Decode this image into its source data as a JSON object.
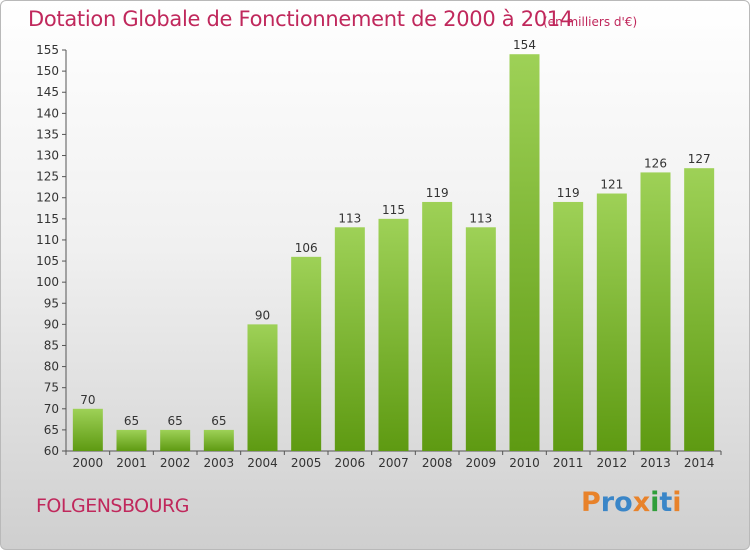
{
  "header": {
    "title": "Dotation Globale de Fonctionnement de 2000 à 2014",
    "subtitle": "(en milliers d'€)"
  },
  "footer": {
    "commune": "FOLGENSBOURG",
    "logo": "Proxiti"
  },
  "colors": {
    "accent": "#c0285c",
    "bar_top": "#9ed157",
    "bar_bottom": "#5e9a12",
    "logo_letters": [
      "#e8822a",
      "#3a86c8",
      "#3a86c8",
      "#e8822a",
      "#2f9e3a",
      "#3a86c8",
      "#e8822a"
    ]
  },
  "chart_data": {
    "type": "bar",
    "title": "Dotation Globale de Fonctionnement de 2000 à 2014",
    "subtitle": "(en milliers d'€)",
    "xlabel": "",
    "ylabel": "",
    "categories": [
      "2000",
      "2001",
      "2002",
      "2003",
      "2004",
      "2005",
      "2006",
      "2007",
      "2008",
      "2009",
      "2010",
      "2011",
      "2012",
      "2013",
      "2014"
    ],
    "values": [
      70,
      65,
      65,
      65,
      90,
      106,
      113,
      115,
      119,
      113,
      154,
      119,
      121,
      126,
      127
    ],
    "ylim": [
      60,
      155
    ],
    "yticks": [
      60,
      65,
      70,
      75,
      80,
      85,
      90,
      95,
      100,
      105,
      110,
      115,
      120,
      125,
      130,
      135,
      140,
      145,
      150,
      155
    ],
    "grid": false,
    "data_labels": true
  }
}
